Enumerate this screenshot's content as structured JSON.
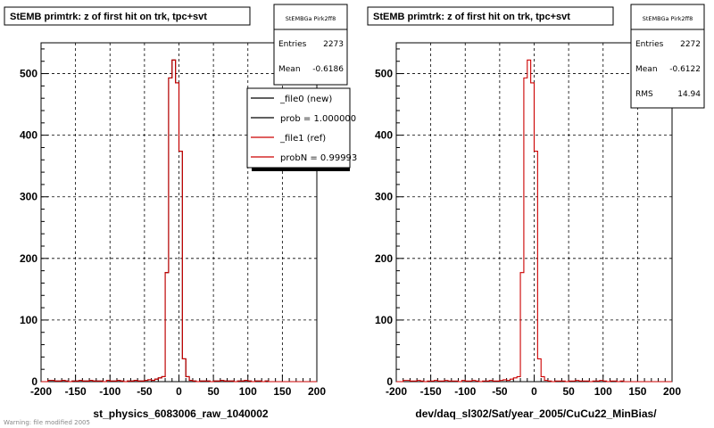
{
  "chart_data": [
    {
      "type": "histogram",
      "title": "StEMB primtrk: z of first hit on trk, tpc+svt",
      "xlabel": "st_physics_6083006_raw_1040002",
      "ylabel": "",
      "xlim": [
        -200,
        200
      ],
      "ylim": [
        0,
        550
      ],
      "grid": true,
      "xticks": [
        "-200",
        "-150",
        "-100",
        "-50",
        "0",
        "50",
        "100",
        "150",
        "200"
      ],
      "yticks": [
        "0",
        "100",
        "200",
        "300",
        "400",
        "500"
      ],
      "bin_edges": [
        -200,
        -195,
        -190,
        -185,
        -180,
        -175,
        -170,
        -165,
        -160,
        -155,
        -150,
        -145,
        -140,
        -135,
        -130,
        -125,
        -120,
        -115,
        -110,
        -105,
        -100,
        -95,
        -90,
        -85,
        -80,
        -75,
        -70,
        -65,
        -60,
        -55,
        -50,
        -45,
        -40,
        -35,
        -30,
        -25,
        -20,
        -15,
        -10,
        -5,
        0,
        5,
        10,
        15,
        20,
        25,
        30,
        35,
        40,
        45,
        50,
        55,
        60,
        65,
        70,
        75,
        80,
        85,
        90,
        95,
        100,
        105,
        110,
        115,
        120,
        125,
        130,
        135,
        140,
        145,
        150,
        155,
        160,
        165,
        170,
        175,
        180,
        185,
        190,
        195,
        200
      ],
      "series": [
        {
          "name": "_file0 (new)",
          "color": "#000000",
          "values": [
            0,
            0,
            2,
            2,
            1,
            1,
            2,
            1,
            0,
            1,
            1,
            2,
            1,
            1,
            2,
            1,
            1,
            1,
            0,
            2,
            1,
            1,
            2,
            1,
            0,
            1,
            1,
            2,
            1,
            1,
            2,
            3,
            2,
            4,
            6,
            8,
            177,
            493,
            522,
            485,
            374,
            37,
            8,
            2,
            1,
            0,
            1,
            1,
            1,
            0,
            1,
            1,
            2,
            1,
            1,
            1,
            0,
            1,
            1,
            2,
            1,
            0,
            1,
            1,
            0,
            1,
            0,
            0,
            0,
            0,
            0,
            0,
            0,
            0,
            0,
            0,
            0,
            0,
            0,
            0
          ]
        },
        {
          "name": "_file1 (ref)",
          "color": "#cc0000",
          "values": [
            0,
            0,
            2,
            2,
            1,
            1,
            2,
            1,
            0,
            1,
            1,
            2,
            1,
            1,
            2,
            1,
            1,
            1,
            0,
            2,
            1,
            1,
            2,
            1,
            0,
            1,
            1,
            2,
            1,
            1,
            2,
            3,
            2,
            4,
            6,
            8,
            177,
            493,
            522,
            485,
            374,
            37,
            8,
            2,
            1,
            0,
            1,
            1,
            1,
            0,
            1,
            1,
            2,
            1,
            1,
            1,
            0,
            1,
            1,
            2,
            1,
            0,
            1,
            1,
            0,
            1,
            0,
            0,
            0,
            0,
            0,
            0,
            0,
            0,
            0,
            0,
            0,
            0,
            0,
            0
          ]
        }
      ],
      "stats": {
        "header": "StEMBGa Pirk2ff8",
        "entries_label": "Entries",
        "entries": "2273",
        "mean_label": "Mean",
        "mean": "-0.6186"
      },
      "legend": {
        "placement": "top-right",
        "entries": [
          "_file0 (new)",
          "prob = 1.000000",
          "_file1 (ref)",
          "probN = 0.99993"
        ]
      }
    },
    {
      "type": "histogram",
      "title": "StEMB primtrk: z of first hit on trk, tpc+svt",
      "xlabel": "dev/daq_sl302/Sat/year_2005/CuCu22_MinBias/",
      "ylabel": "",
      "xlim": [
        -200,
        200
      ],
      "ylim": [
        0,
        550
      ],
      "grid": true,
      "xticks": [
        "-200",
        "-150",
        "-100",
        "-50",
        "0",
        "50",
        "100",
        "150",
        "200"
      ],
      "yticks": [
        "0",
        "100",
        "200",
        "300",
        "400",
        "500"
      ],
      "bin_edges": [
        -200,
        -195,
        -190,
        -185,
        -180,
        -175,
        -170,
        -165,
        -160,
        -155,
        -150,
        -145,
        -140,
        -135,
        -130,
        -125,
        -120,
        -115,
        -110,
        -105,
        -100,
        -95,
        -90,
        -85,
        -80,
        -75,
        -70,
        -65,
        -60,
        -55,
        -50,
        -45,
        -40,
        -35,
        -30,
        -25,
        -20,
        -15,
        -10,
        -5,
        0,
        5,
        10,
        15,
        20,
        25,
        30,
        35,
        40,
        45,
        50,
        55,
        60,
        65,
        70,
        75,
        80,
        85,
        90,
        95,
        100,
        105,
        110,
        115,
        120,
        125,
        130,
        135,
        140,
        145,
        150,
        155,
        160,
        165,
        170,
        175,
        180,
        185,
        190,
        195,
        200
      ],
      "series": [
        {
          "name": "",
          "color": "#cc0000",
          "values": [
            0,
            0,
            2,
            2,
            1,
            1,
            2,
            1,
            0,
            1,
            1,
            2,
            1,
            1,
            2,
            1,
            1,
            1,
            0,
            2,
            1,
            1,
            2,
            1,
            0,
            1,
            1,
            2,
            1,
            1,
            2,
            3,
            2,
            4,
            6,
            8,
            177,
            493,
            522,
            485,
            374,
            37,
            8,
            2,
            1,
            0,
            1,
            1,
            1,
            0,
            1,
            1,
            2,
            1,
            1,
            1,
            0,
            1,
            1,
            2,
            1,
            0,
            1,
            1,
            0,
            1,
            0,
            0,
            0,
            0,
            0,
            0,
            0,
            0,
            0,
            0,
            0,
            0,
            0,
            0
          ]
        }
      ],
      "stats": {
        "header": "StEMBGa Pirk2ff8",
        "entries_label": "Entries",
        "entries": "2272",
        "mean_label": "Mean",
        "mean": "-0.6122",
        "rms_label": "RMS",
        "rms": "14.94"
      }
    }
  ],
  "footer": "Warning: file modified 2005"
}
